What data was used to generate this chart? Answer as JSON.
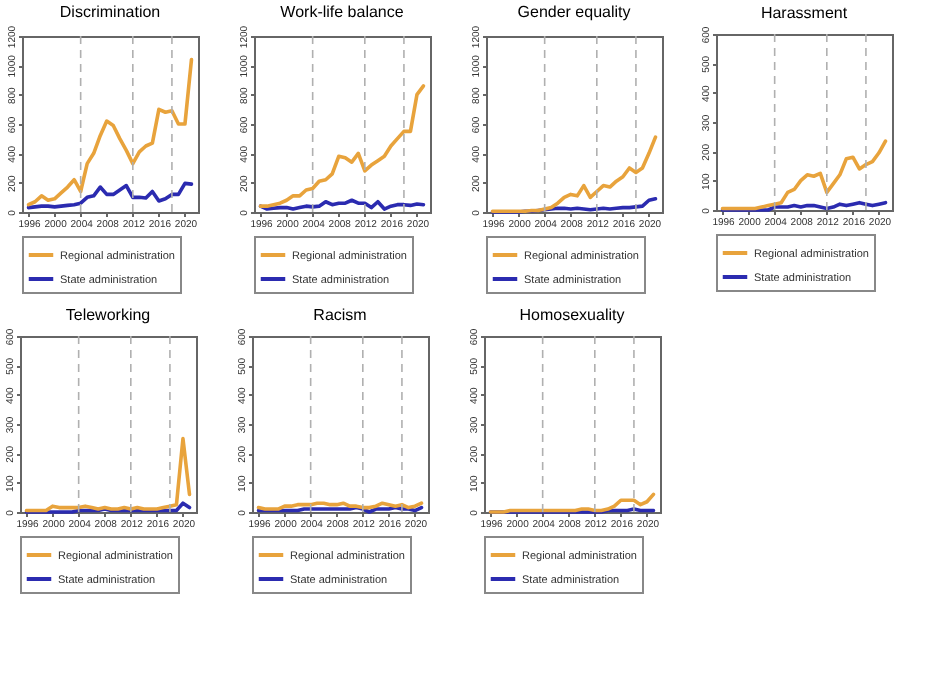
{
  "chart_data": [
    {
      "type": "line",
      "title": "Discrimination",
      "x": [
        1996,
        1997,
        1998,
        1999,
        2000,
        2001,
        2002,
        2003,
        2004,
        2005,
        2006,
        2007,
        2008,
        2009,
        2010,
        2011,
        2012,
        2013,
        2014,
        2015,
        2016,
        2017,
        2018,
        2019,
        2020,
        2021
      ],
      "xlim": [
        1995,
        2022
      ],
      "xticks": [
        1996,
        2000,
        2004,
        2008,
        2012,
        2016,
        2020
      ],
      "ylim": [
        0,
        1200
      ],
      "yticks": [
        0,
        200,
        400,
        600,
        800,
        1000,
        1200
      ],
      "grid": false,
      "legend": "bottom",
      "ref_lines": [
        {
          "axis": "x",
          "value": 2004,
          "color": "#b0b0b0",
          "line_style": "dashed"
        },
        {
          "axis": "x",
          "value": 2012,
          "color": "#b0b0b0",
          "line_style": "dashed"
        },
        {
          "axis": "x",
          "value": 2018,
          "color": "#b0b0b0",
          "line_style": "dashed"
        }
      ],
      "series": [
        {
          "name": "Regional administration",
          "color": "#e8a33c",
          "values": [
            50,
            70,
            110,
            80,
            90,
            130,
            170,
            220,
            140,
            330,
            400,
            520,
            620,
            590,
            500,
            420,
            330,
            410,
            450,
            470,
            700,
            680,
            690,
            600,
            600,
            1040
          ]
        },
        {
          "name": "State administration",
          "color": "#2b2bb0",
          "values": [
            30,
            35,
            40,
            40,
            35,
            40,
            45,
            50,
            60,
            100,
            110,
            170,
            120,
            120,
            150,
            180,
            100,
            100,
            95,
            140,
            75,
            90,
            120,
            120,
            195,
            190
          ]
        }
      ]
    },
    {
      "type": "line",
      "title": "Work-life balance",
      "x": [
        1996,
        1997,
        1998,
        1999,
        2000,
        2001,
        2002,
        2003,
        2004,
        2005,
        2006,
        2007,
        2008,
        2009,
        2010,
        2011,
        2012,
        2013,
        2014,
        2015,
        2016,
        2017,
        2018,
        2019,
        2020,
        2021
      ],
      "xlim": [
        1995,
        2022
      ],
      "xticks": [
        1996,
        2000,
        2004,
        2008,
        2012,
        2016,
        2020
      ],
      "ylim": [
        0,
        1200
      ],
      "yticks": [
        0,
        200,
        400,
        600,
        800,
        1000,
        1200
      ],
      "grid": false,
      "legend": "bottom",
      "ref_lines": [
        {
          "axis": "x",
          "value": 2004,
          "color": "#b0b0b0",
          "line_style": "dashed"
        },
        {
          "axis": "x",
          "value": 2012,
          "color": "#b0b0b0",
          "line_style": "dashed"
        },
        {
          "axis": "x",
          "value": 2018,
          "color": "#b0b0b0",
          "line_style": "dashed"
        }
      ],
      "series": [
        {
          "name": "Regional administration",
          "color": "#e8a33c",
          "values": [
            40,
            40,
            50,
            60,
            80,
            110,
            110,
            150,
            160,
            210,
            220,
            260,
            380,
            370,
            340,
            400,
            280,
            320,
            350,
            380,
            450,
            500,
            550,
            550,
            800,
            860
          ]
        },
        {
          "name": "State administration",
          "color": "#2b2bb0",
          "values": [
            40,
            20,
            25,
            30,
            30,
            20,
            30,
            40,
            35,
            40,
            70,
            50,
            60,
            60,
            80,
            60,
            60,
            30,
            70,
            20,
            40,
            50,
            50,
            45,
            55,
            50
          ]
        }
      ]
    },
    {
      "type": "line",
      "title": "Gender equality",
      "x": [
        1996,
        1997,
        1998,
        1999,
        2000,
        2001,
        2002,
        2003,
        2004,
        2005,
        2006,
        2007,
        2008,
        2009,
        2010,
        2011,
        2012,
        2013,
        2014,
        2015,
        2016,
        2017,
        2018,
        2019,
        2020,
        2021
      ],
      "xlim": [
        1995,
        2022
      ],
      "xticks": [
        1996,
        2000,
        2004,
        2008,
        2012,
        2016,
        2020
      ],
      "ylim": [
        0,
        1200
      ],
      "yticks": [
        0,
        200,
        400,
        600,
        800,
        1000,
        1200
      ],
      "grid": false,
      "legend": "bottom",
      "ref_lines": [
        {
          "axis": "x",
          "value": 2004,
          "color": "#b0b0b0",
          "line_style": "dashed"
        },
        {
          "axis": "x",
          "value": 2012,
          "color": "#b0b0b0",
          "line_style": "dashed"
        },
        {
          "axis": "x",
          "value": 2018,
          "color": "#b0b0b0",
          "line_style": "dashed"
        }
      ],
      "series": [
        {
          "name": "Regional administration",
          "color": "#e8a33c",
          "values": [
            5,
            5,
            5,
            5,
            5,
            5,
            10,
            10,
            20,
            30,
            60,
            100,
            120,
            110,
            180,
            100,
            140,
            180,
            170,
            210,
            240,
            300,
            270,
            300,
            400,
            510
          ]
        },
        {
          "name": "State administration",
          "color": "#2b2bb0",
          "values": [
            0,
            0,
            0,
            0,
            0,
            5,
            5,
            10,
            15,
            20,
            25,
            25,
            20,
            25,
            20,
            15,
            20,
            25,
            20,
            25,
            30,
            30,
            35,
            40,
            80,
            90
          ]
        }
      ]
    },
    {
      "type": "line",
      "title": "Harassment",
      "x": [
        1996,
        1997,
        1998,
        1999,
        2000,
        2001,
        2002,
        2003,
        2004,
        2005,
        2006,
        2007,
        2008,
        2009,
        2010,
        2011,
        2012,
        2013,
        2014,
        2015,
        2016,
        2017,
        2018,
        2019,
        2020,
        2021
      ],
      "xlim": [
        1995,
        2022
      ],
      "xticks": [
        1996,
        2000,
        2004,
        2008,
        2012,
        2016,
        2020
      ],
      "ylim": [
        0,
        600
      ],
      "yticks": [
        0,
        100,
        200,
        300,
        400,
        500,
        600
      ],
      "grid": false,
      "legend": "bottom",
      "ref_lines": [
        {
          "axis": "x",
          "value": 2004,
          "color": "#b0b0b0",
          "line_style": "dashed"
        },
        {
          "axis": "x",
          "value": 2012,
          "color": "#b0b0b0",
          "line_style": "dashed"
        },
        {
          "axis": "x",
          "value": 2018,
          "color": "#b0b0b0",
          "line_style": "dashed"
        }
      ],
      "series": [
        {
          "name": "Regional administration",
          "color": "#e8a33c",
          "values": [
            5,
            5,
            5,
            5,
            5,
            5,
            10,
            15,
            20,
            25,
            60,
            70,
            100,
            120,
            115,
            125,
            60,
            90,
            120,
            175,
            180,
            140,
            155,
            165,
            195,
            235
          ]
        },
        {
          "name": "State administration",
          "color": "#2b2bb0",
          "values": [
            0,
            0,
            0,
            0,
            0,
            0,
            0,
            0,
            10,
            10,
            10,
            15,
            10,
            15,
            15,
            10,
            5,
            10,
            20,
            15,
            20,
            25,
            20,
            15,
            20,
            25
          ]
        }
      ]
    },
    {
      "type": "line",
      "title": "Teleworking",
      "x": [
        1996,
        1997,
        1998,
        1999,
        2000,
        2001,
        2002,
        2003,
        2004,
        2005,
        2006,
        2007,
        2008,
        2009,
        2010,
        2011,
        2012,
        2013,
        2014,
        2015,
        2016,
        2017,
        2018,
        2019,
        2020,
        2021
      ],
      "xlim": [
        1995,
        2022
      ],
      "xticks": [
        1996,
        2000,
        2004,
        2008,
        2012,
        2016,
        2020
      ],
      "ylim": [
        0,
        600
      ],
      "yticks": [
        0,
        100,
        200,
        300,
        400,
        500,
        600
      ],
      "grid": false,
      "legend": "bottom",
      "ref_lines": [
        {
          "axis": "x",
          "value": 2004,
          "color": "#b0b0b0",
          "line_style": "dashed"
        },
        {
          "axis": "x",
          "value": 2012,
          "color": "#b0b0b0",
          "line_style": "dashed"
        },
        {
          "axis": "x",
          "value": 2018,
          "color": "#b0b0b0",
          "line_style": "dashed"
        }
      ],
      "series": [
        {
          "name": "Regional administration",
          "color": "#e8a33c",
          "values": [
            5,
            5,
            5,
            5,
            20,
            15,
            15,
            15,
            15,
            20,
            15,
            10,
            15,
            10,
            10,
            15,
            10,
            15,
            10,
            10,
            10,
            15,
            20,
            25,
            250,
            60
          ]
        },
        {
          "name": "State administration",
          "color": "#2b2bb0",
          "values": [
            0,
            0,
            0,
            0,
            0,
            0,
            0,
            0,
            5,
            5,
            5,
            5,
            10,
            5,
            5,
            5,
            5,
            5,
            5,
            5,
            5,
            5,
            5,
            5,
            30,
            15
          ]
        }
      ]
    },
    {
      "type": "line",
      "title": "Racism",
      "x": [
        1996,
        1997,
        1998,
        1999,
        2000,
        2001,
        2002,
        2003,
        2004,
        2005,
        2006,
        2007,
        2008,
        2009,
        2010,
        2011,
        2012,
        2013,
        2014,
        2015,
        2016,
        2017,
        2018,
        2019,
        2020,
        2021
      ],
      "xlim": [
        1995,
        2022
      ],
      "xticks": [
        1996,
        2000,
        2004,
        2008,
        2012,
        2016,
        2020
      ],
      "ylim": [
        0,
        600
      ],
      "yticks": [
        0,
        100,
        200,
        300,
        400,
        500,
        600
      ],
      "grid": false,
      "legend": "bottom",
      "ref_lines": [
        {
          "axis": "x",
          "value": 2004,
          "color": "#b0b0b0",
          "line_style": "dashed"
        },
        {
          "axis": "x",
          "value": 2012,
          "color": "#b0b0b0",
          "line_style": "dashed"
        },
        {
          "axis": "x",
          "value": 2018,
          "color": "#b0b0b0",
          "line_style": "dashed"
        }
      ],
      "series": [
        {
          "name": "Regional administration",
          "color": "#e8a33c",
          "values": [
            15,
            10,
            10,
            10,
            20,
            20,
            25,
            25,
            25,
            30,
            30,
            25,
            25,
            30,
            20,
            20,
            15,
            15,
            20,
            30,
            25,
            20,
            25,
            15,
            20,
            30
          ]
        },
        {
          "name": "State administration",
          "color": "#2b2bb0",
          "values": [
            5,
            5,
            5,
            5,
            5,
            5,
            5,
            10,
            10,
            10,
            10,
            10,
            10,
            10,
            10,
            15,
            10,
            0,
            10,
            10,
            10,
            15,
            10,
            10,
            5,
            15
          ]
        }
      ]
    },
    {
      "type": "line",
      "title": "Homosexuality",
      "x": [
        1996,
        1997,
        1998,
        1999,
        2000,
        2001,
        2002,
        2003,
        2004,
        2005,
        2006,
        2007,
        2008,
        2009,
        2010,
        2011,
        2012,
        2013,
        2014,
        2015,
        2016,
        2017,
        2018,
        2019,
        2020,
        2021
      ],
      "xlim": [
        1995,
        2022
      ],
      "xticks": [
        1996,
        2000,
        2004,
        2008,
        2012,
        2016,
        2020
      ],
      "ylim": [
        0,
        600
      ],
      "yticks": [
        0,
        100,
        200,
        300,
        400,
        500,
        600
      ],
      "grid": false,
      "legend": "bottom",
      "ref_lines": [
        {
          "axis": "x",
          "value": 2004,
          "color": "#b0b0b0",
          "line_style": "dashed"
        },
        {
          "axis": "x",
          "value": 2012,
          "color": "#b0b0b0",
          "line_style": "dashed"
        },
        {
          "axis": "x",
          "value": 2018,
          "color": "#b0b0b0",
          "line_style": "dashed"
        }
      ],
      "series": [
        {
          "name": "Regional administration",
          "color": "#e8a33c",
          "values": [
            0,
            0,
            0,
            5,
            5,
            5,
            5,
            5,
            5,
            5,
            5,
            5,
            5,
            5,
            10,
            10,
            5,
            5,
            10,
            20,
            40,
            40,
            40,
            25,
            35,
            60
          ]
        },
        {
          "name": "State administration",
          "color": "#2b2bb0",
          "values": [
            0,
            0,
            0,
            0,
            0,
            0,
            0,
            0,
            0,
            0,
            0,
            0,
            0,
            0,
            0,
            0,
            0,
            0,
            5,
            5,
            5,
            5,
            10,
            5,
            5,
            5
          ]
        }
      ]
    }
  ]
}
